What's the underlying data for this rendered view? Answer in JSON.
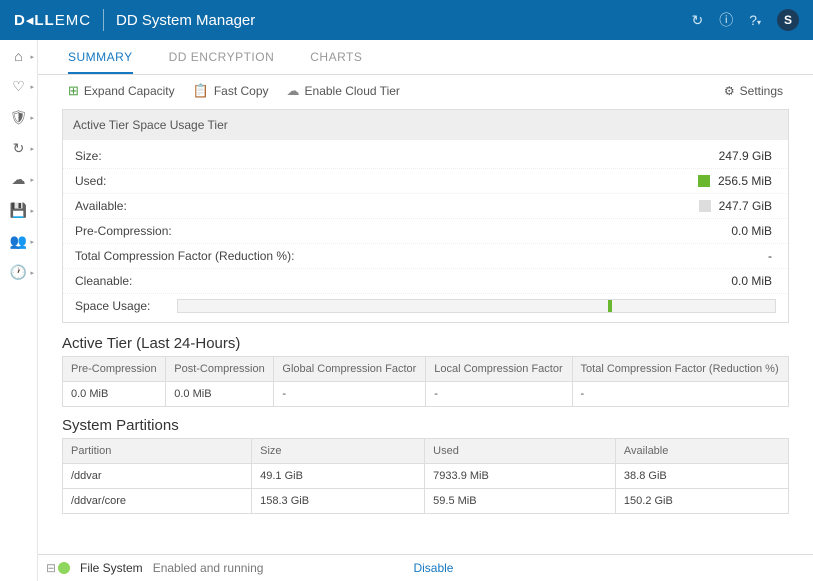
{
  "header": {
    "brand": "D&#x200A;LLEMC",
    "title": "DD System Manager",
    "avatar": "S"
  },
  "tabs": {
    "summary": "SUMMARY",
    "encryption": "DD ENCRYPTION",
    "charts": "CHARTS"
  },
  "toolbar": {
    "expand": "Expand Capacity",
    "fastcopy": "Fast Copy",
    "cloud": "Enable Cloud Tier",
    "settings": "Settings"
  },
  "active_tier_panel": {
    "title": "Active Tier Space Usage Tier",
    "rows": {
      "size": {
        "label": "Size:",
        "value": "247.9 GiB"
      },
      "used": {
        "label": "Used:",
        "value": "256.5 MiB"
      },
      "available": {
        "label": "Available:",
        "value": "247.7 GiB"
      },
      "precomp": {
        "label": "Pre-Compression:",
        "value": "0.0 MiB"
      },
      "totalcomp": {
        "label": "Total Compression Factor (Reduction %):",
        "value": "-"
      },
      "cleanable": {
        "label": "Cleanable:",
        "value": "0.0 MiB"
      },
      "usage": {
        "label": "Space Usage:"
      }
    }
  },
  "last24": {
    "title": "Active Tier (Last 24-Hours)",
    "headers": {
      "pre": "Pre-Compression",
      "post": "Post-Compression",
      "global": "Global Compression Factor",
      "local": "Local Compression Factor",
      "total": "Total Compression Factor (Reduction %)"
    },
    "row": {
      "pre": "0.0 MiB",
      "post": "0.0 MiB",
      "global": "-",
      "local": "-",
      "total": "-"
    }
  },
  "partitions": {
    "title": "System Partitions",
    "headers": {
      "partition": "Partition",
      "size": "Size",
      "used": "Used",
      "available": "Available"
    },
    "rows": [
      {
        "partition": "/ddvar",
        "size": "49.1 GiB",
        "used": "7933.9 MiB",
        "available": "38.8 GiB"
      },
      {
        "partition": "/ddvar/core",
        "size": "158.3 GiB",
        "used": "59.5 MiB",
        "available": "150.2 GiB"
      }
    ]
  },
  "footer": {
    "label": "File System",
    "status": "Enabled and running",
    "disable": "Disable"
  }
}
